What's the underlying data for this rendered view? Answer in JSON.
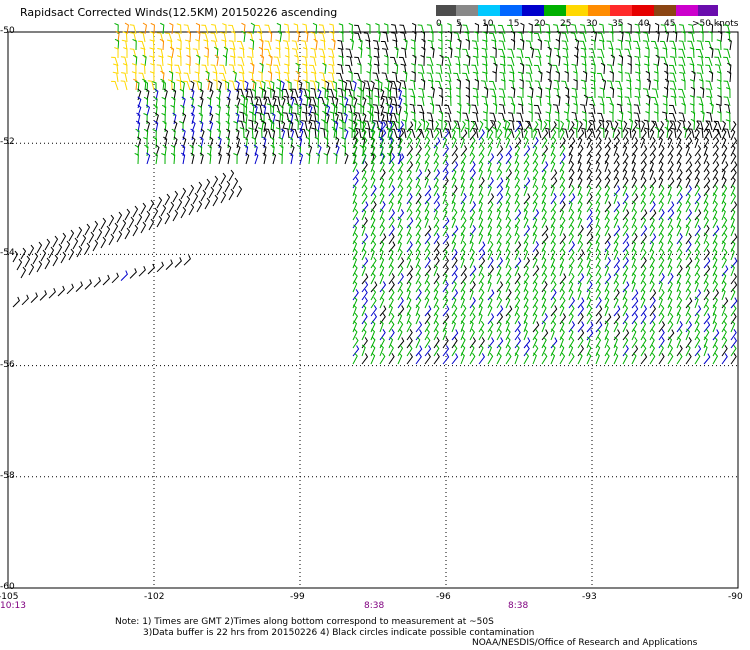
{
  "title": "Rapidsact Corrected Winds(12.5KM) 20150226 ascending",
  "legend": {
    "labels": [
      "0",
      "5",
      "10",
      "15",
      "20",
      "25",
      "30",
      "35",
      "40",
      "45",
      ">50 knots"
    ],
    "colors": [
      "#4d4d4d",
      "#888888",
      "#00c8ff",
      "#0066ff",
      "#0000cc",
      "#00b000",
      "#ffd800",
      "#ff8c00",
      "#ff2a2a",
      "#e60000",
      "#8b4513",
      "#cc00cc",
      "#6a0dad"
    ]
  },
  "axes": {
    "y_labels": [
      "-50",
      "-52",
      "-54",
      "-56",
      "-58",
      "-60"
    ],
    "x_labels": [
      "-105",
      "-102",
      "-99",
      "-96",
      "-93",
      "-90"
    ],
    "x_range": [
      -105,
      -90
    ],
    "y_range": [
      -60,
      -50
    ]
  },
  "times": [
    "10:13",
    "8:38",
    "8:38"
  ],
  "notes": {
    "line1": "Note: 1) Times are GMT 2)Times along bottom correspond to measurement at ~50S",
    "line2": "3)Data buffer is 22 hrs from 20150226 4) Black circles indicate possible contamination",
    "credit": "NOAA/NESDIS/Office of Research and Applications"
  }
}
